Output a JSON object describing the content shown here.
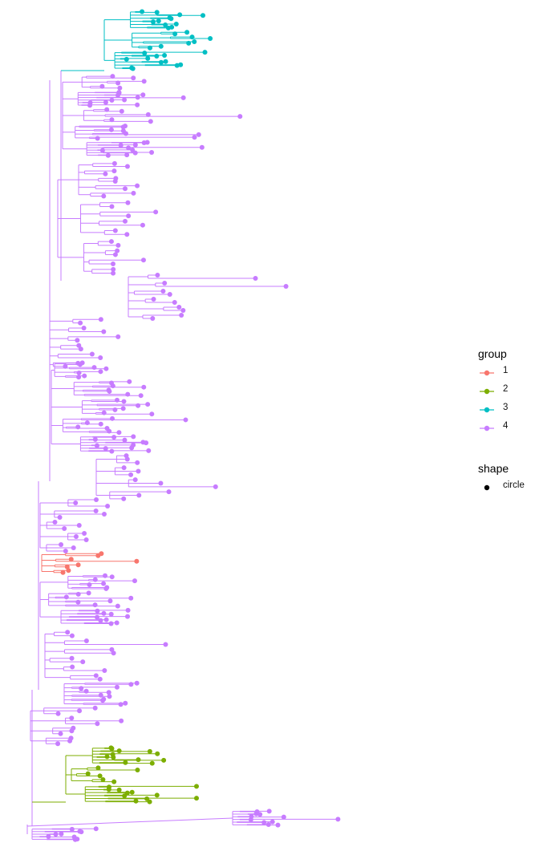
{
  "legend": {
    "group": {
      "title": "group",
      "items": [
        {
          "label": "1",
          "color": "#f8766d"
        },
        {
          "label": "2",
          "color": "#7cae00"
        },
        {
          "label": "3",
          "color": "#00bfc4"
        },
        {
          "label": "4",
          "color": "#c77cff"
        }
      ]
    },
    "shape": {
      "title": "shape",
      "items": [
        {
          "label": "circle",
          "color": "#000000"
        }
      ]
    }
  }
}
